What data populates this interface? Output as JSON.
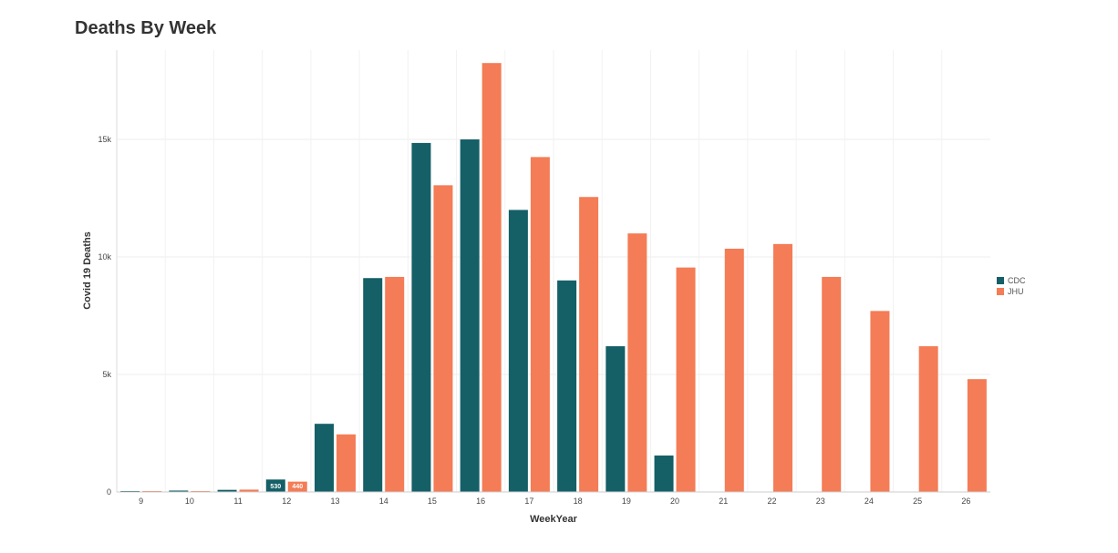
{
  "title": "Deaths By Week",
  "chart_data": {
    "type": "bar",
    "title": "Deaths By Week",
    "xlabel": "WeekYear",
    "ylabel": "Covid 19 Deaths",
    "categories": [
      "9",
      "10",
      "11",
      "12",
      "13",
      "14",
      "15",
      "16",
      "17",
      "18",
      "19",
      "20",
      "21",
      "22",
      "23",
      "24",
      "25",
      "26"
    ],
    "series": [
      {
        "name": "CDC",
        "color": "#155f67",
        "values": [
          10,
          60,
          90,
          530,
          2900,
          9100,
          14850,
          15000,
          12000,
          9000,
          6200,
          1550,
          null,
          null,
          null,
          null,
          null,
          null
        ]
      },
      {
        "name": "JHU",
        "color": "#f47c56",
        "values": [
          5,
          20,
          100,
          440,
          2450,
          9150,
          13050,
          18250,
          14250,
          12550,
          11000,
          9550,
          10350,
          10550,
          9150,
          7700,
          6200,
          4800
        ]
      }
    ],
    "data_labels": [
      {
        "series": "CDC",
        "category": "12",
        "text": "530"
      },
      {
        "series": "JHU",
        "category": "12",
        "text": "440"
      }
    ],
    "yticks": [
      0,
      5000,
      10000,
      15000
    ],
    "ytick_labels": [
      "0",
      "5k",
      "10k",
      "15k"
    ],
    "ylim": [
      0,
      18800
    ],
    "grid": true,
    "legend": "right"
  }
}
